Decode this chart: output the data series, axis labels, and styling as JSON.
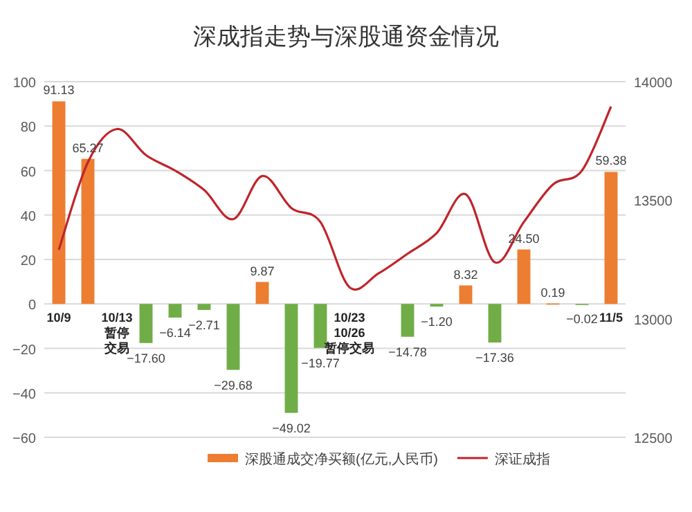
{
  "chart_data": {
    "type": "bar",
    "title": "深成指走势与深股通资金情况",
    "categories": [
      "10/9",
      null,
      "10/13暂停交易",
      null,
      null,
      null,
      null,
      null,
      null,
      null,
      "10/23 10/26暂停交易",
      null,
      null,
      null,
      null,
      null,
      null,
      null,
      null,
      "11/5"
    ],
    "series": [
      {
        "name": "深股通成交净买额(亿元,人民币)",
        "values": [
          91.13,
          65.27,
          null,
          -17.6,
          -6.14,
          -2.71,
          -29.68,
          9.87,
          -49.02,
          -19.77,
          null,
          null,
          -14.78,
          -1.2,
          8.32,
          -17.36,
          24.5,
          0.19,
          -0.02,
          59.38
        ],
        "value_labels": [
          "91.13",
          "65.27",
          null,
          "−17.60",
          "−6.14",
          "−2.71",
          "−29.68",
          "9.87",
          "−49.02",
          "−19.77",
          null,
          null,
          "−14.78",
          "−1.20",
          "8.32",
          "−17.36",
          "24.50",
          "0.19",
          "−0.02",
          "59.38"
        ],
        "colors": [
          "#ed7d31",
          "#ed7d31",
          null,
          "#70ad47",
          "#70ad47",
          "#70ad47",
          "#70ad47",
          "#ed7d31",
          "#70ad47",
          "#70ad47",
          null,
          null,
          "#70ad47",
          "#70ad47",
          "#ed7d31",
          "#70ad47",
          "#ed7d31",
          "#ed7d31",
          "#70ad47",
          "#ed7d31"
        ],
        "color": "#ed7d31"
      },
      {
        "name": "深证成指",
        "type": "line",
        "axis": "y2",
        "color": "#c0242a",
        "values": [
          13291,
          13660,
          13800,
          13690,
          13625,
          13543,
          13420,
          13602,
          13467,
          13408,
          13133,
          13191,
          13274,
          13361,
          13525,
          13238,
          13408,
          13566,
          13625,
          13895
        ]
      }
    ],
    "ylim": [
      -60,
      100
    ],
    "yticks": [
      -60,
      -40,
      -20,
      0,
      20,
      40,
      60,
      80,
      100
    ],
    "y2lim": [
      12500,
      14000
    ],
    "y2ticks": [
      12500,
      13000,
      13500,
      14000
    ],
    "grid": "y",
    "legend": "bottom"
  }
}
